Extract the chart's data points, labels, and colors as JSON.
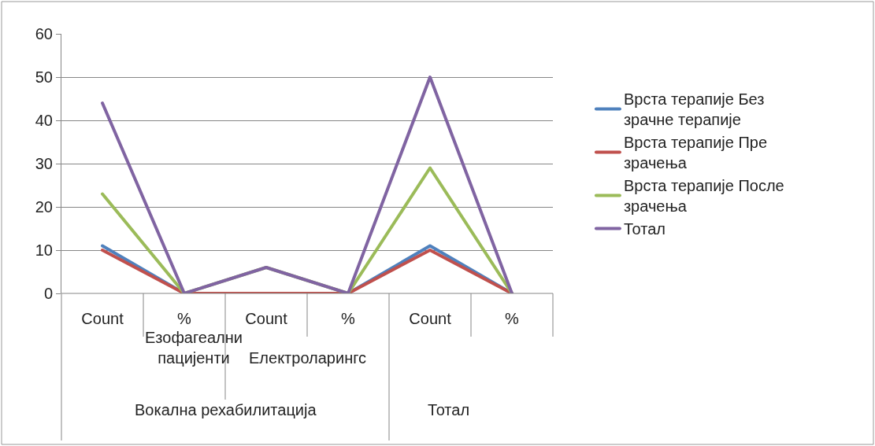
{
  "chart_data": {
    "type": "line",
    "categories": [
      "Count",
      "%",
      "Count",
      "%",
      "Count",
      "%"
    ],
    "series": [
      {
        "name": "Врста терапије Без зрачне терапије",
        "color": "#4f81bd",
        "values": [
          11,
          0,
          0,
          0,
          11,
          0
        ]
      },
      {
        "name": "Врста терапије Пре зрачења",
        "color": "#c0504d",
        "values": [
          10,
          0,
          0,
          0,
          10,
          0
        ]
      },
      {
        "name": "Врста терапије После зрачења",
        "color": "#9bbb59",
        "values": [
          23,
          0,
          6,
          0,
          29,
          0
        ]
      },
      {
        "name": "Тотал",
        "color": "#8064a2",
        "values": [
          44,
          0,
          6,
          0,
          50,
          0
        ]
      }
    ],
    "annotations": [
      "Езофагеални пацијенти",
      "Електроларингс",
      "Вокална рехабилитација",
      "Тотал"
    ],
    "ylim": [
      0,
      60
    ],
    "yticks": [
      0,
      10,
      20,
      30,
      40,
      50,
      60
    ],
    "grid": "y",
    "legend": "right",
    "marker": "none",
    "line_style": "solid"
  }
}
